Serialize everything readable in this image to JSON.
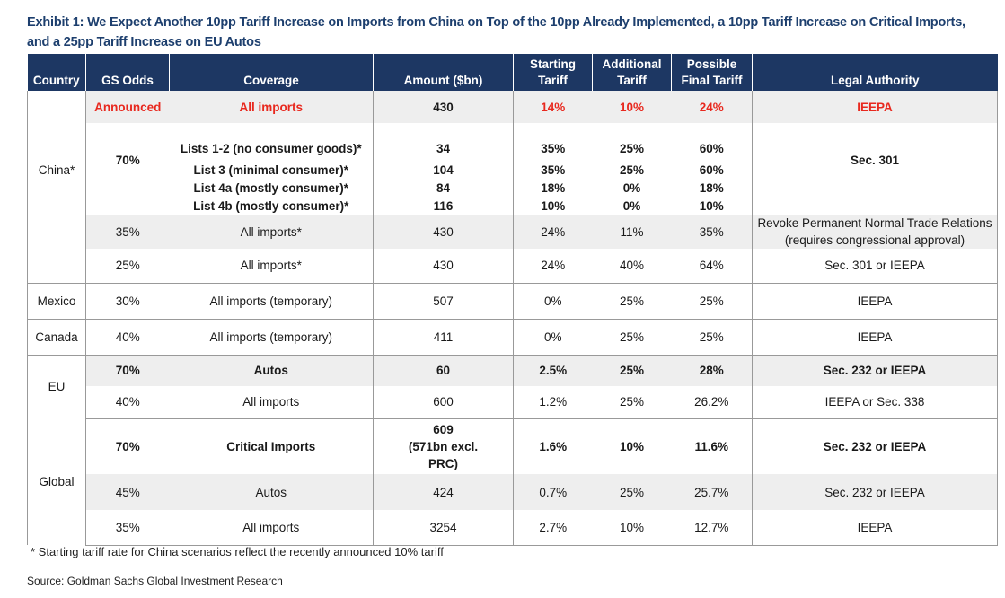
{
  "title_line1": "Exhibit 1: We Expect Another 10pp Tariff Increase on Imports from China on Top of the 10pp Already Implemented, a 10pp Tariff Increase on Critical Imports,",
  "title_line2": "and a 25pp Tariff Increase on EU Autos",
  "headers": {
    "country": "Country",
    "odds": "GS Odds",
    "coverage": "Coverage",
    "amount": "Amount ($bn)",
    "start_1": "Starting",
    "start_2": "Tariff",
    "add_1": "Additional",
    "add_2": "Tariff",
    "final_1": "Possible",
    "final_2": "Final Tariff",
    "legal": "Legal Authority"
  },
  "china": {
    "country": "China*",
    "announced": {
      "odds": "Announced",
      "coverage": "All imports",
      "amount": "430",
      "start": "14%",
      "add": "10%",
      "final": "24%",
      "legal": "IEEPA"
    },
    "odds70": "70%",
    "legal301": "Sec. 301",
    "lists": [
      {
        "coverage": "Lists 1-2 (no consumer goods)*",
        "amount": "34",
        "start": "35%",
        "add": "25%",
        "final": "60%"
      },
      {
        "coverage": "List 3 (minimal consumer)*",
        "amount": "104",
        "start": "35%",
        "add": "25%",
        "final": "60%"
      },
      {
        "coverage": "List 4a (mostly consumer)*",
        "amount": "84",
        "start": "18%",
        "add": "0%",
        "final": "18%"
      },
      {
        "coverage": "List 4b (mostly consumer)*",
        "amount": "116",
        "start": "10%",
        "add": "0%",
        "final": "10%"
      }
    ],
    "pntr": {
      "odds": "35%",
      "coverage": "All imports*",
      "amount": "430",
      "start": "24%",
      "add": "11%",
      "final": "35%",
      "legal_1": "Revoke Permanent Normal Trade Relations",
      "legal_2": "(requires congressional approval)"
    },
    "alt": {
      "odds": "25%",
      "coverage": "All imports*",
      "amount": "430",
      "start": "24%",
      "add": "40%",
      "final": "64%",
      "legal": "Sec. 301 or IEEPA"
    }
  },
  "mexico": {
    "country": "Mexico",
    "odds": "30%",
    "coverage": "All imports (temporary)",
    "amount": "507",
    "start": "0%",
    "add": "25%",
    "final": "25%",
    "legal": "IEEPA"
  },
  "canada": {
    "country": "Canada",
    "odds": "40%",
    "coverage": "All imports (temporary)",
    "amount": "411",
    "start": "0%",
    "add": "25%",
    "final": "25%",
    "legal": "IEEPA"
  },
  "eu": {
    "country": "EU",
    "autos": {
      "odds": "70%",
      "coverage": "Autos",
      "amount": "60",
      "start": "2.5%",
      "add": "25%",
      "final": "28%",
      "legal": "Sec. 232 or IEEPA"
    },
    "all": {
      "odds": "40%",
      "coverage": "All imports",
      "amount": "600",
      "start": "1.2%",
      "add": "25%",
      "final": "26.2%",
      "legal": "IEEPA or Sec. 338"
    }
  },
  "global": {
    "country": "Global",
    "critical": {
      "odds": "70%",
      "coverage": "Critical Imports",
      "amount_1": "609",
      "amount_2": "(571bn excl.",
      "amount_3": "PRC)",
      "start": "1.6%",
      "add": "10%",
      "final": "11.6%",
      "legal": "Sec. 232 or IEEPA"
    },
    "autos": {
      "odds": "45%",
      "coverage": "Autos",
      "amount": "424",
      "start": "0.7%",
      "add": "25%",
      "final": "25.7%",
      "legal": "Sec. 232 or IEEPA"
    },
    "all": {
      "odds": "35%",
      "coverage": "All imports",
      "amount": "3254",
      "start": "2.7%",
      "add": "10%",
      "final": "12.7%",
      "legal": "IEEPA"
    }
  },
  "footnote": "* Starting tariff rate for China scenarios reflect the recently announced 10% tariff",
  "source": "Source: Goldman Sachs Global Investment Research",
  "colors": {
    "header_bg": "#1d3763",
    "title": "#1d3f6e",
    "announced_red": "#e8281e",
    "row_shade": "#eeeeee"
  }
}
